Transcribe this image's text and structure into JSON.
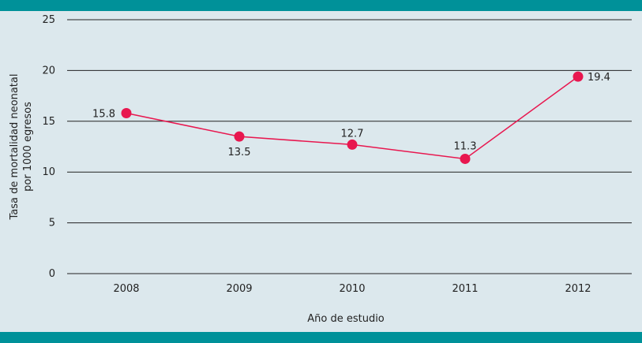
{
  "colors": {
    "background": "#dce8ed",
    "band": "#009199",
    "line": "#e8174f",
    "grid": "#222222"
  },
  "chart_data": {
    "type": "line",
    "categories": [
      "2008",
      "2009",
      "2010",
      "2011",
      "2012"
    ],
    "values": [
      15.8,
      13.5,
      12.7,
      11.3,
      19.4
    ],
    "data_labels": [
      "15.8",
      "13.5",
      "12.7",
      "11.3",
      "19.4"
    ],
    "xlabel": "Año de estudio",
    "ylabel_line1": "Tasa de mortalidad neonatal",
    "ylabel_line2": "por 1000 egresos",
    "yticks": [
      0,
      5,
      10,
      15,
      20,
      25
    ],
    "ytick_labels": [
      "0",
      "5",
      "10",
      "15",
      "20",
      "25"
    ],
    "ylim": [
      0,
      25
    ],
    "grid": true
  }
}
